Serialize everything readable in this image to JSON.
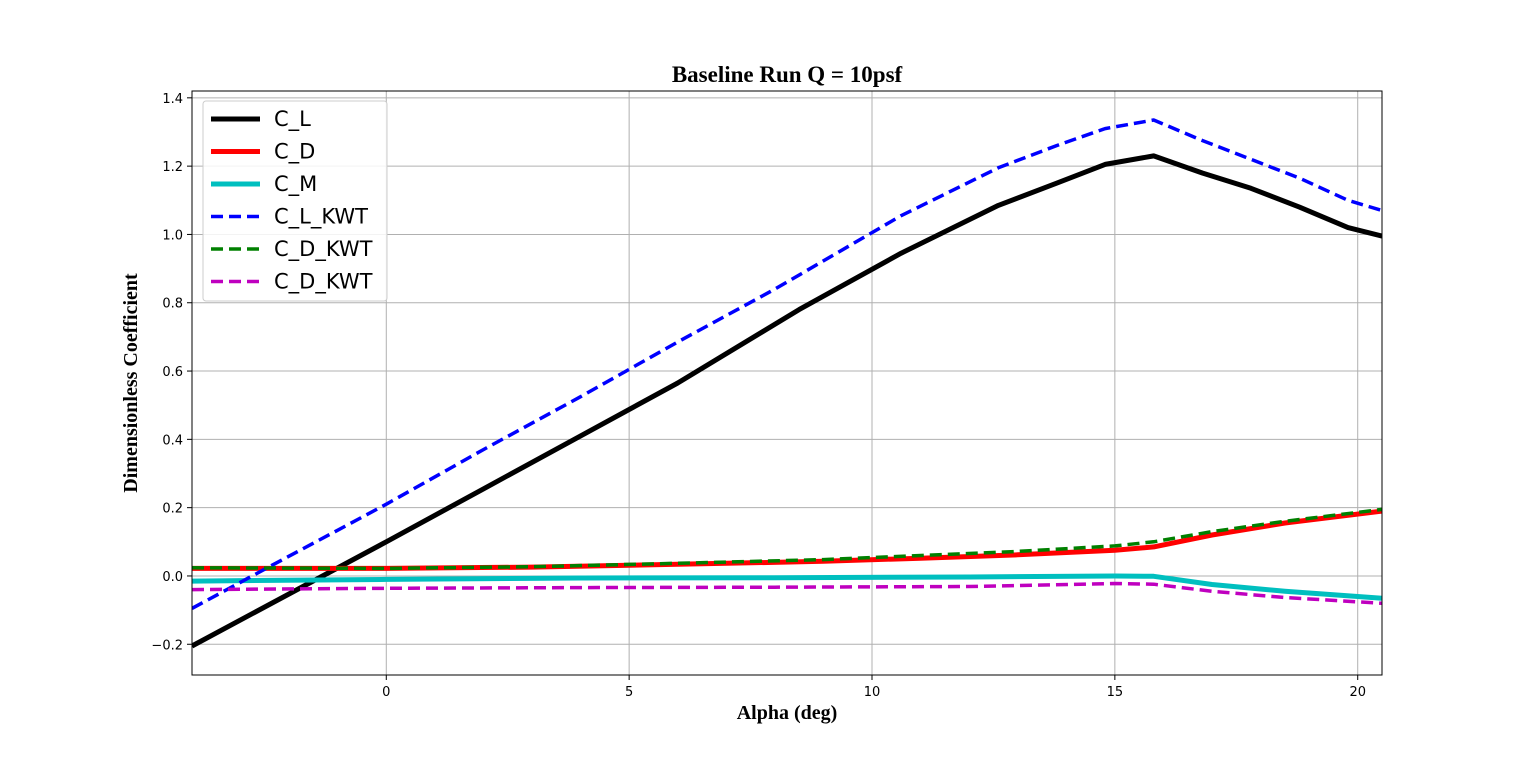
{
  "chart_data": {
    "type": "line",
    "title": "Baseline Run Q = 10psf",
    "xlabel": "Alpha (deg)",
    "ylabel": "Dimensionless Coefficient",
    "xlim": [
      -4,
      20.5
    ],
    "ylim": [
      -0.29,
      1.42
    ],
    "xticks": [
      0,
      5,
      10,
      15,
      20
    ],
    "yticks": [
      -0.2,
      0.0,
      0.2,
      0.4,
      0.6,
      0.8,
      1.0,
      1.2,
      1.4
    ],
    "ytick_labels": [
      "−0.2",
      "0.0",
      "0.2",
      "0.4",
      "0.6",
      "0.8",
      "1.0",
      "1.2",
      "1.4"
    ],
    "grid": true,
    "legend_position": "top-left",
    "series": [
      {
        "name": "C_L",
        "color": "#000000",
        "style": "solid",
        "x": [
          -4,
          0,
          2,
          4,
          6,
          8.5,
          10.6,
          12.6,
          13.8,
          14.8,
          15.8,
          16.8,
          17.8,
          18.8,
          19.8,
          20.5
        ],
        "y": [
          -0.205,
          0.1,
          0.255,
          0.41,
          0.565,
          0.78,
          0.945,
          1.085,
          1.15,
          1.205,
          1.23,
          1.18,
          1.135,
          1.08,
          1.02,
          0.995
        ]
      },
      {
        "name": "C_D",
        "color": "#ff0000",
        "style": "solid",
        "x": [
          -4,
          0,
          3,
          6,
          9,
          11,
          13,
          15,
          15.8,
          17,
          18.5,
          20.5
        ],
        "y": [
          0.022,
          0.022,
          0.026,
          0.034,
          0.043,
          0.052,
          0.062,
          0.075,
          0.085,
          0.12,
          0.155,
          0.19
        ]
      },
      {
        "name": "C_M",
        "color": "#00bfbf",
        "style": "solid",
        "x": [
          -4,
          0,
          4,
          8,
          12,
          15,
          15.8,
          17,
          18.5,
          20.5
        ],
        "y": [
          -0.015,
          -0.01,
          -0.006,
          -0.005,
          -0.003,
          0.0,
          -0.001,
          -0.025,
          -0.045,
          -0.065
        ]
      },
      {
        "name": "C_L_KWT",
        "color": "#0000ff",
        "style": "dashed",
        "x": [
          -4,
          -2.5,
          0,
          2,
          4,
          6,
          8,
          10.6,
          12.6,
          13.8,
          14.8,
          15.8,
          16.8,
          17.8,
          18.8,
          19.8,
          20.5
        ],
        "y": [
          -0.095,
          0.02,
          0.21,
          0.37,
          0.525,
          0.685,
          0.84,
          1.055,
          1.195,
          1.26,
          1.31,
          1.335,
          1.275,
          1.22,
          1.165,
          1.1,
          1.07
        ]
      },
      {
        "name": "C_D_KWT",
        "color": "#008000",
        "style": "dashed",
        "x": [
          -4,
          0,
          3,
          6,
          9,
          11,
          13,
          15,
          15.8,
          17,
          18.5,
          20.5
        ],
        "y": [
          0.024,
          0.022,
          0.027,
          0.037,
          0.048,
          0.06,
          0.072,
          0.088,
          0.1,
          0.13,
          0.16,
          0.195
        ]
      },
      {
        "name": "C_D_KWT",
        "color": "#bf00bf",
        "style": "dashed",
        "x": [
          -4,
          0,
          4,
          8,
          12,
          15,
          15.8,
          17,
          18.5,
          20.5
        ],
        "y": [
          -0.04,
          -0.036,
          -0.034,
          -0.033,
          -0.031,
          -0.022,
          -0.024,
          -0.045,
          -0.063,
          -0.08
        ]
      }
    ]
  }
}
